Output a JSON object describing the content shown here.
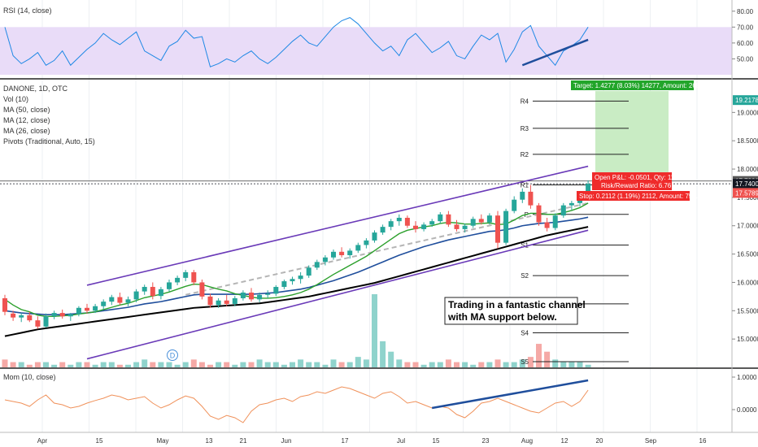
{
  "rsi_panel": {
    "legend": "RSI (14, close)",
    "axis_ticks": [
      "80.00",
      "70.00",
      "60.00",
      "50.00"
    ],
    "band": [
      30,
      70
    ],
    "band_color": "#e9dcf8",
    "line_color": "#1e88e5"
  },
  "main_panel": {
    "legend": [
      "DANONE, 1D, OTC",
      "Vol (10)",
      "MA (50, close)",
      "MA (12, close)",
      "MA (26, close)",
      "Pivots (Traditional, Auto, 15)"
    ],
    "axis_ticks": [
      "19.0000",
      "18.5000",
      "18.0000",
      "17.5000",
      "17.0000",
      "16.5000",
      "16.0000",
      "15.5000",
      "15.0000"
    ],
    "price_badges": [
      {
        "text": "19.2178",
        "color": "#26a69a"
      },
      {
        "text": "17.7901",
        "color": "#555555"
      },
      {
        "text": "17.7400",
        "color": "#131722"
      },
      {
        "text": "17.5789",
        "color": "#ef5350"
      }
    ],
    "pivots": [
      {
        "label": "R4",
        "value": 19.2
      },
      {
        "label": "R3",
        "value": 18.72
      },
      {
        "label": "R2",
        "value": 18.26
      },
      {
        "label": "R1",
        "value": 17.72
      },
      {
        "label": "P",
        "value": 17.2
      },
      {
        "label": "S1",
        "value": 16.66
      },
      {
        "label": "S2",
        "value": 16.12
      },
      {
        "label": "S3",
        "value": 15.62
      },
      {
        "label": "S4",
        "value": 15.11
      },
      {
        "label": "S5",
        "value": 14.6
      }
    ],
    "target_label": "Target: 1.4277 (8.03%) 14277, Amount: 2688.97",
    "open_pnl_label": "Open P&L: -0.0501, Qty: 1183",
    "risk_reward_label": "Risk/Reward Ratio: 6.76",
    "stop_label": "Stop: 0.2112 (1.19%) 2112, Amount: 750.15",
    "annotation_lines": [
      "Trading in a fantastic channel",
      "with MA support below."
    ],
    "event_badge": "D",
    "colors": {
      "up": "#26a69a",
      "down": "#ef5350",
      "ma50": "#000000",
      "ma12": "#2ca02c",
      "ma26": "#1f4e9c",
      "channel": "#6a3ab8",
      "volume_up": "#8fd3cc",
      "volume_down": "#f5a9a6"
    }
  },
  "mom_panel": {
    "legend": "Mom (10, close)",
    "axis_ticks": [
      "1.0000",
      "0.0000"
    ],
    "line_color": "#f0915a"
  },
  "x_axis": {
    "labels": [
      "Apr",
      "15",
      "May",
      "13",
      "21",
      "Jun",
      "17",
      "Jul",
      "15",
      "23",
      "Aug",
      "12",
      "20",
      "Sep",
      "16"
    ]
  },
  "chart_data": {
    "type": "candlestick",
    "title": "DANONE, 1D, OTC",
    "ylim": [
      14.5,
      19.55
    ],
    "dates_span": [
      "Mar",
      "Sep"
    ],
    "candles": [
      [
        15.72,
        15.78,
        15.42,
        15.48
      ],
      [
        15.45,
        15.5,
        15.32,
        15.38
      ],
      [
        15.38,
        15.46,
        15.3,
        15.42
      ],
      [
        15.42,
        15.48,
        15.3,
        15.33
      ],
      [
        15.33,
        15.4,
        15.18,
        15.22
      ],
      [
        15.22,
        15.45,
        15.2,
        15.4
      ],
      [
        15.4,
        15.5,
        15.35,
        15.46
      ],
      [
        15.46,
        15.52,
        15.36,
        15.4
      ],
      [
        15.4,
        15.46,
        15.32,
        15.44
      ],
      [
        15.44,
        15.58,
        15.4,
        15.55
      ],
      [
        15.55,
        15.62,
        15.45,
        15.5
      ],
      [
        15.5,
        15.62,
        15.46,
        15.58
      ],
      [
        15.58,
        15.7,
        15.52,
        15.66
      ],
      [
        15.66,
        15.78,
        15.6,
        15.74
      ],
      [
        15.74,
        15.82,
        15.6,
        15.64
      ],
      [
        15.64,
        15.75,
        15.58,
        15.7
      ],
      [
        15.7,
        15.88,
        15.65,
        15.84
      ],
      [
        15.84,
        15.96,
        15.78,
        15.92
      ],
      [
        15.92,
        16.0,
        15.7,
        15.76
      ],
      [
        15.76,
        15.92,
        15.7,
        15.88
      ],
      [
        15.88,
        16.05,
        15.84,
        16.0
      ],
      [
        16.0,
        16.12,
        15.95,
        16.08
      ],
      [
        16.08,
        16.22,
        16.02,
        16.18
      ],
      [
        16.18,
        16.22,
        15.95,
        16.0
      ],
      [
        16.0,
        16.05,
        15.7,
        15.75
      ],
      [
        15.75,
        15.8,
        15.55,
        15.6
      ],
      [
        15.6,
        15.72,
        15.55,
        15.68
      ],
      [
        15.68,
        15.78,
        15.58,
        15.62
      ],
      [
        15.62,
        15.76,
        15.58,
        15.72
      ],
      [
        15.72,
        15.86,
        15.68,
        15.82
      ],
      [
        15.82,
        15.9,
        15.66,
        15.7
      ],
      [
        15.7,
        15.82,
        15.65,
        15.78
      ],
      [
        15.78,
        15.86,
        15.72,
        15.8
      ],
      [
        15.8,
        15.95,
        15.76,
        15.92
      ],
      [
        15.92,
        16.05,
        15.88,
        16.02
      ],
      [
        16.02,
        16.1,
        15.96,
        16.06
      ],
      [
        16.06,
        16.18,
        15.98,
        16.12
      ],
      [
        16.12,
        16.3,
        16.08,
        16.26
      ],
      [
        16.26,
        16.4,
        16.22,
        16.36
      ],
      [
        16.36,
        16.48,
        16.3,
        16.44
      ],
      [
        16.44,
        16.58,
        16.4,
        16.54
      ],
      [
        16.54,
        16.62,
        16.44,
        16.48
      ],
      [
        16.48,
        16.6,
        16.42,
        16.56
      ],
      [
        16.56,
        16.7,
        16.52,
        16.66
      ],
      [
        16.66,
        16.78,
        16.6,
        16.74
      ],
      [
        16.74,
        16.92,
        16.7,
        16.88
      ],
      [
        16.88,
        17.02,
        16.84,
        16.98
      ],
      [
        16.98,
        17.12,
        16.92,
        17.08
      ],
      [
        17.08,
        17.2,
        17.0,
        17.14
      ],
      [
        17.14,
        17.18,
        16.96,
        17.0
      ],
      [
        17.0,
        17.08,
        16.88,
        16.94
      ],
      [
        16.94,
        17.06,
        16.9,
        17.02
      ],
      [
        17.02,
        17.12,
        16.98,
        17.08
      ],
      [
        17.08,
        17.24,
        17.04,
        17.2
      ],
      [
        17.2,
        17.26,
        16.98,
        17.02
      ],
      [
        17.02,
        17.1,
        16.9,
        16.94
      ],
      [
        16.94,
        17.04,
        16.88,
        17.0
      ],
      [
        17.0,
        17.16,
        16.96,
        17.12
      ],
      [
        17.12,
        17.2,
        17.02,
        17.06
      ],
      [
        17.06,
        17.22,
        17.02,
        17.18
      ],
      [
        17.18,
        17.26,
        16.6,
        16.7
      ],
      [
        16.7,
        17.3,
        16.66,
        17.26
      ],
      [
        17.26,
        17.52,
        17.22,
        17.46
      ],
      [
        17.46,
        17.66,
        17.4,
        17.6
      ],
      [
        17.6,
        17.72,
        17.3,
        17.36
      ],
      [
        17.36,
        17.4,
        17.0,
        17.06
      ],
      [
        17.06,
        17.14,
        16.9,
        16.96
      ],
      [
        16.96,
        17.22,
        16.92,
        17.18
      ],
      [
        17.18,
        17.4,
        17.14,
        17.36
      ],
      [
        17.36,
        17.44,
        17.28,
        17.4
      ],
      [
        17.4,
        17.52,
        17.34,
        17.46
      ],
      [
        17.46,
        17.8,
        17.44,
        17.74
      ]
    ],
    "ma12": [
      15.7,
      15.6,
      15.52,
      15.48,
      15.42,
      15.4,
      15.4,
      15.41,
      15.42,
      15.44,
      15.46,
      15.48,
      15.52,
      15.56,
      15.6,
      15.63,
      15.68,
      15.73,
      15.76,
      15.79,
      15.83,
      15.88,
      15.93,
      15.97,
      15.96,
      15.92,
      15.88,
      15.85,
      15.8,
      15.77,
      15.74,
      15.72,
      15.72,
      15.73,
      15.75,
      15.78,
      15.82,
      15.88,
      15.96,
      16.05,
      16.14,
      16.22,
      16.3,
      16.38,
      16.46,
      16.56,
      16.66,
      16.76,
      16.86,
      16.92,
      16.95,
      16.98,
      17.0,
      17.04,
      17.06,
      17.05,
      17.03,
      17.03,
      17.04,
      17.05,
      17.02,
      17.03,
      17.1,
      17.18,
      17.22,
      17.22,
      17.2,
      17.2,
      17.23,
      17.27,
      17.32,
      17.4
    ],
    "ma26": [
      15.5,
      15.48,
      15.46,
      15.45,
      15.44,
      15.43,
      15.43,
      15.43,
      15.44,
      15.45,
      15.46,
      15.48,
      15.5,
      15.52,
      15.54,
      15.56,
      15.59,
      15.62,
      15.64,
      15.66,
      15.69,
      15.72,
      15.75,
      15.78,
      15.79,
      15.79,
      15.79,
      15.79,
      15.79,
      15.79,
      15.79,
      15.8,
      15.81,
      15.82,
      15.84,
      15.86,
      15.88,
      15.91,
      15.95,
      15.99,
      16.03,
      16.08,
      16.13,
      16.18,
      16.24,
      16.3,
      16.36,
      16.42,
      16.48,
      16.53,
      16.58,
      16.63,
      16.67,
      16.71,
      16.75,
      16.78,
      16.81,
      16.84,
      16.87,
      16.9,
      16.91,
      16.93,
      16.96,
      17.0,
      17.02,
      17.04,
      17.05,
      17.06,
      17.08,
      17.1,
      17.12,
      17.15
    ],
    "ma50": [
      15.05,
      15.08,
      15.11,
      15.14,
      15.17,
      15.19,
      15.21,
      15.23,
      15.25,
      15.27,
      15.29,
      15.31,
      15.33,
      15.35,
      15.37,
      15.39,
      15.41,
      15.43,
      15.45,
      15.47,
      15.49,
      15.51,
      15.53,
      15.55,
      15.56,
      15.57,
      15.58,
      15.59,
      15.6,
      15.61,
      15.62,
      15.63,
      15.65,
      15.67,
      15.69,
      15.71,
      15.73,
      15.75,
      15.78,
      15.81,
      15.84,
      15.87,
      15.9,
      15.93,
      15.96,
      15.99,
      16.03,
      16.07,
      16.11,
      16.15,
      16.19,
      16.23,
      16.27,
      16.31,
      16.35,
      16.39,
      16.43,
      16.47,
      16.51,
      16.55,
      16.59,
      16.63,
      16.67,
      16.71,
      16.75,
      16.79,
      16.83,
      16.86,
      16.89,
      16.92,
      16.95,
      16.98
    ],
    "volume": [
      3,
      2,
      2,
      1,
      2,
      2,
      1,
      2,
      1,
      2,
      2,
      1,
      2,
      2,
      1,
      1,
      2,
      3,
      2,
      2,
      2,
      1,
      2,
      3,
      2,
      1,
      2,
      2,
      1,
      2,
      2,
      3,
      2,
      2,
      1,
      2,
      3,
      2,
      2,
      1,
      3,
      2,
      2,
      4,
      3,
      28,
      10,
      6,
      3,
      2,
      2,
      1,
      2,
      2,
      3,
      2,
      2,
      1,
      2,
      2,
      3,
      2,
      2,
      3,
      4,
      9,
      6,
      3,
      2,
      2,
      2,
      1
    ],
    "rsi": [
      70,
      52,
      47,
      50,
      54,
      46,
      49,
      55,
      46,
      51,
      56,
      60,
      66,
      62,
      59,
      63,
      67,
      55,
      52,
      49,
      58,
      61,
      68,
      63,
      64,
      45,
      47,
      50,
      48,
      52,
      55,
      50,
      47,
      51,
      56,
      61,
      65,
      60,
      58,
      64,
      70,
      74,
      76,
      72,
      66,
      60,
      55,
      58,
      52,
      62,
      66,
      60,
      54,
      57,
      61,
      52,
      50,
      58,
      65,
      62,
      66,
      48,
      56,
      67,
      71,
      58,
      52,
      46,
      55,
      58,
      62,
      70
    ],
    "rsi_trendline": [
      [
        63,
        46
      ],
      [
        71,
        62
      ]
    ],
    "momentum": [
      0.3,
      0.25,
      0.2,
      0.1,
      0.3,
      0.45,
      0.2,
      0.15,
      0.05,
      0.1,
      0.2,
      0.28,
      0.35,
      0.45,
      0.4,
      0.3,
      0.35,
      0.4,
      0.2,
      0.05,
      0.15,
      0.3,
      0.42,
      0.35,
      0.1,
      -0.2,
      -0.3,
      -0.18,
      -0.25,
      -0.4,
      -0.05,
      0.15,
      0.2,
      0.3,
      0.35,
      0.25,
      0.4,
      0.45,
      0.55,
      0.5,
      0.6,
      0.7,
      0.65,
      0.55,
      0.45,
      0.35,
      0.5,
      0.55,
      0.4,
      0.2,
      0.25,
      0.15,
      0.05,
      0.1,
      0.05,
      -0.15,
      -0.25,
      -0.05,
      0.2,
      0.25,
      0.35,
      0.25,
      0.15,
      0.05,
      -0.05,
      -0.1,
      0.05,
      0.2,
      0.25,
      0.1,
      0.25,
      0.6
    ],
    "momentum_trendline": [
      [
        52,
        0.05
      ],
      [
        71,
        0.9
      ]
    ],
    "ylim_rsi": [
      40,
      85
    ],
    "ylim_mom": [
      -0.6,
      1.15
    ],
    "channel_upper": [
      [
        10,
        15.95
      ],
      [
        71,
        18.05
      ]
    ],
    "channel_lower": [
      [
        10,
        14.65
      ],
      [
        71,
        16.92
      ]
    ],
    "dashed_line": [
      [
        22,
        15.78
      ],
      [
        71,
        17.4
      ]
    ]
  }
}
